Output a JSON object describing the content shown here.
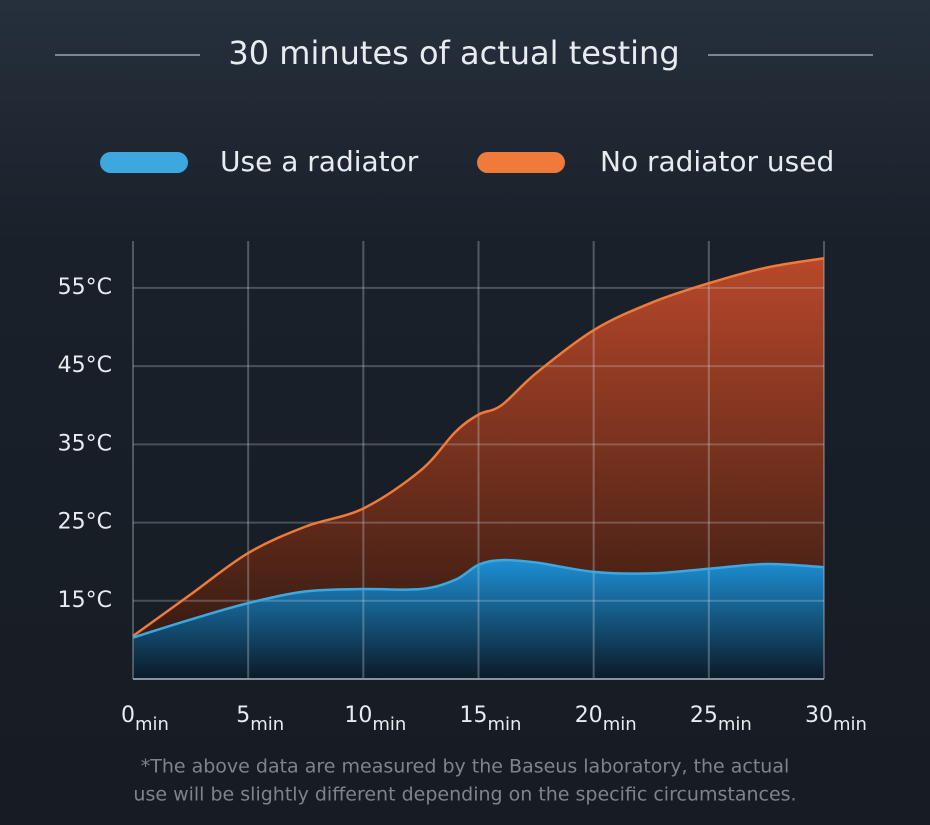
{
  "chart_data": {
    "type": "area",
    "title": "30 minutes of actual testing",
    "x_unit": "min",
    "x": [
      0,
      2.5,
      5,
      7.5,
      10,
      12.5,
      14,
      15,
      16,
      17.5,
      20,
      22.5,
      25,
      27.5,
      30
    ],
    "series": [
      {
        "name": "No radiator used",
        "color": "#f07a3a",
        "values": [
          10.5,
          15.8,
          21.1,
          24.5,
          26.8,
          31.7,
          36.6,
          38.8,
          40.0,
          44.1,
          49.6,
          53.1,
          55.6,
          57.6,
          58.8
        ]
      },
      {
        "name": "Use a radiator",
        "color": "#3da7e0",
        "values": [
          10.3,
          12.6,
          14.7,
          16.2,
          16.5,
          16.5,
          17.7,
          19.6,
          20.2,
          19.9,
          18.7,
          18.5,
          19.1,
          19.7,
          19.3
        ]
      }
    ],
    "legend_order": [
      1,
      0
    ],
    "xlim": [
      0,
      30
    ],
    "xticks": [
      0,
      5,
      10,
      15,
      20,
      25,
      30
    ],
    "ylim": [
      5,
      61
    ],
    "yticks": [
      {
        "value": 15,
        "label": "15°C"
      },
      {
        "value": 25,
        "label": "25°C"
      },
      {
        "value": 35,
        "label": "35°C"
      },
      {
        "value": 45,
        "label": "45°C"
      },
      {
        "value": 55,
        "label": "55°C"
      }
    ],
    "grid": true,
    "footnote": [
      "*The above data are measured by the Baseus laboratory, the actual",
      "use will be slightly different depending on the specific circumstances."
    ]
  }
}
